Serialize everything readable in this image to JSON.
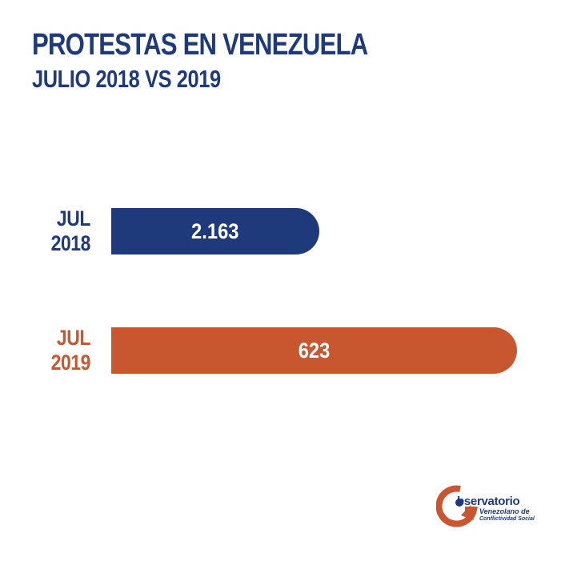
{
  "header": {
    "title": "PROTESTAS EN VENEZUELA",
    "subtitle": "JULIO 2018 VS 2019"
  },
  "colors": {
    "primary": "#1f3a7a",
    "accent": "#c8562f",
    "background": "#ffffff"
  },
  "chart_data": {
    "type": "bar",
    "orientation": "horizontal",
    "title": "PROTESTAS EN VENEZUELA",
    "subtitle": "JULIO 2018 VS 2019",
    "categories": [
      [
        "JUL",
        "2018"
      ],
      [
        "JUL",
        "2019"
      ]
    ],
    "values": [
      2163,
      623
    ],
    "value_labels": [
      "2.163",
      "623"
    ],
    "colors": [
      "#1f3a7a",
      "#c8562f"
    ],
    "grid": false,
    "legend": "none"
  },
  "logo": {
    "name": "Observatorio Venezolano de Conflictividad Social",
    "lines": [
      "bservatorio",
      "Venezolano de",
      "Conflictividad Social"
    ]
  }
}
